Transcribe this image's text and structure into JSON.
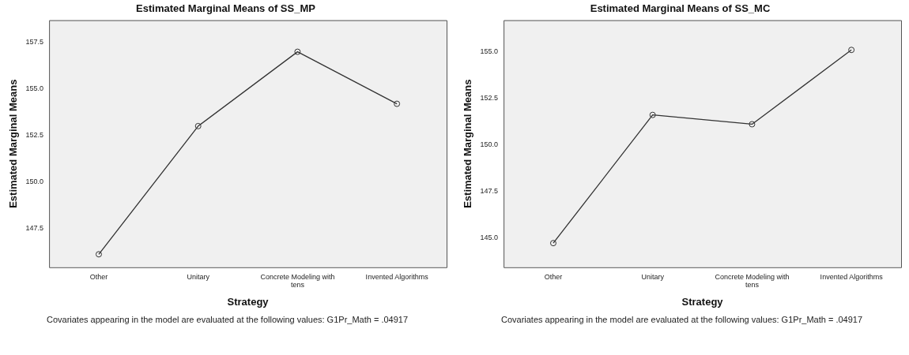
{
  "chart_data": [
    {
      "type": "line",
      "title": "Estimated Marginal Means of SS_MP",
      "xlabel": "Strategy",
      "ylabel": "Estimated Marginal Means",
      "categories": [
        "Other",
        "Unitary",
        "Concrete Modeling with tens",
        "Invented Algorithms"
      ],
      "series": [
        {
          "color": "#333333",
          "values": [
            146.1,
            153.0,
            157.0,
            154.2
          ]
        }
      ],
      "ylim": [
        145.4,
        158.7
      ],
      "yticks": [
        {
          "value": 147.5,
          "label": "147.5"
        },
        {
          "value": 150,
          "label": "150.0"
        },
        {
          "value": 152.5,
          "label": "152.5"
        },
        {
          "value": 155,
          "label": "155.0"
        },
        {
          "value": 157.5,
          "label": "157.5"
        }
      ],
      "grid": false,
      "legend": false,
      "marker": "circle",
      "line_style": "solid",
      "annotations": [
        "Covariates appearing in the model are evaluated at the following values: G1Pr_Math = .04917"
      ]
    },
    {
      "type": "line",
      "title": "Estimated Marginal Means of SS_MC",
      "xlabel": "Strategy",
      "ylabel": "Estimated Marginal Means",
      "categories": [
        "Other",
        "Unitary",
        "Concrete Modeling with tens",
        "Invented Algorithms"
      ],
      "series": [
        {
          "color": "#333333",
          "values": [
            144.7,
            151.6,
            151.1,
            155.1
          ]
        }
      ],
      "ylim": [
        143.4,
        156.7
      ],
      "yticks": [
        {
          "value": 145,
          "label": "145.0"
        },
        {
          "value": 147.5,
          "label": "147.5"
        },
        {
          "value": 150,
          "label": "150.0"
        },
        {
          "value": 152.5,
          "label": "152.5"
        },
        {
          "value": 155,
          "label": "155.0"
        }
      ],
      "grid": false,
      "legend": false,
      "marker": "circle",
      "line_style": "solid",
      "annotations": [
        "Covariates appearing in the model are evaluated at the following values: G1Pr_Math = .04917"
      ]
    }
  ]
}
